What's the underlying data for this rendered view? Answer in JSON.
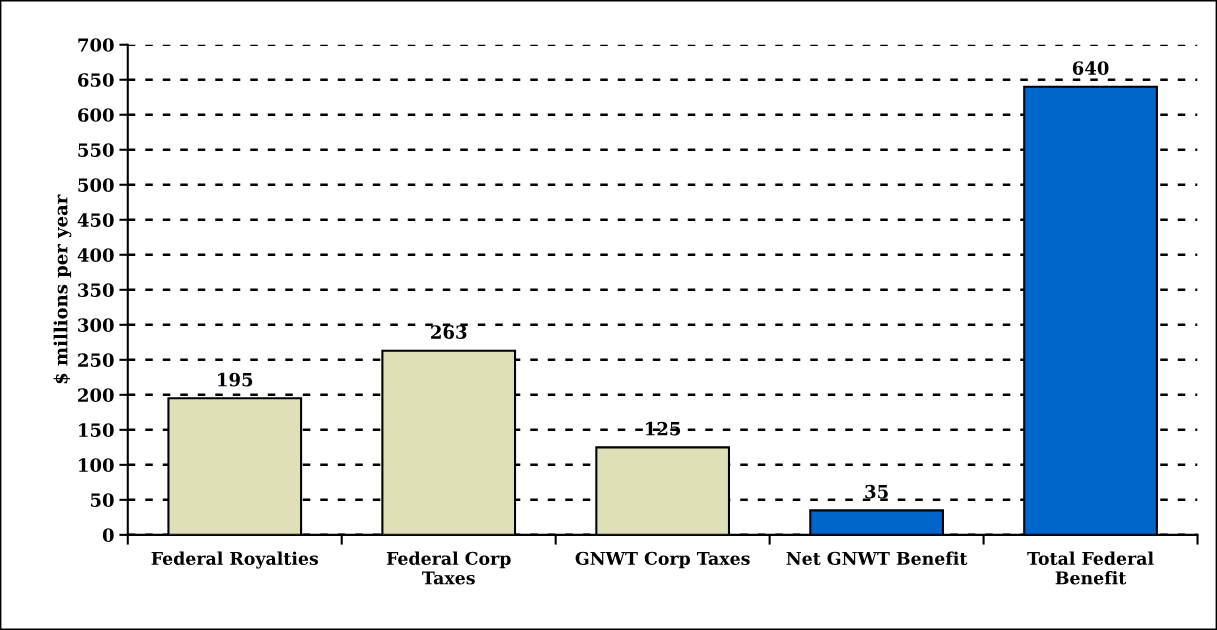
{
  "chart_data": {
    "type": "bar",
    "ylabel": "$ millions per year",
    "categories": [
      "Federal Royalties",
      "Federal Corp\nTaxes",
      "GNWT Corp Taxes",
      "Net GNWT Benefit",
      "Total Federal\nBenefit"
    ],
    "values": [
      195,
      263,
      125,
      35,
      640
    ],
    "colors": [
      "#e0e0b8",
      "#e0e0b8",
      "#e0e0b8",
      "#0066cc",
      "#0066cc"
    ],
    "ylim": [
      0,
      700
    ],
    "yticks": [
      0,
      50,
      100,
      150,
      200,
      250,
      300,
      350,
      400,
      450,
      500,
      550,
      600,
      650,
      700
    ],
    "grid": "y",
    "data_labels": true
  }
}
